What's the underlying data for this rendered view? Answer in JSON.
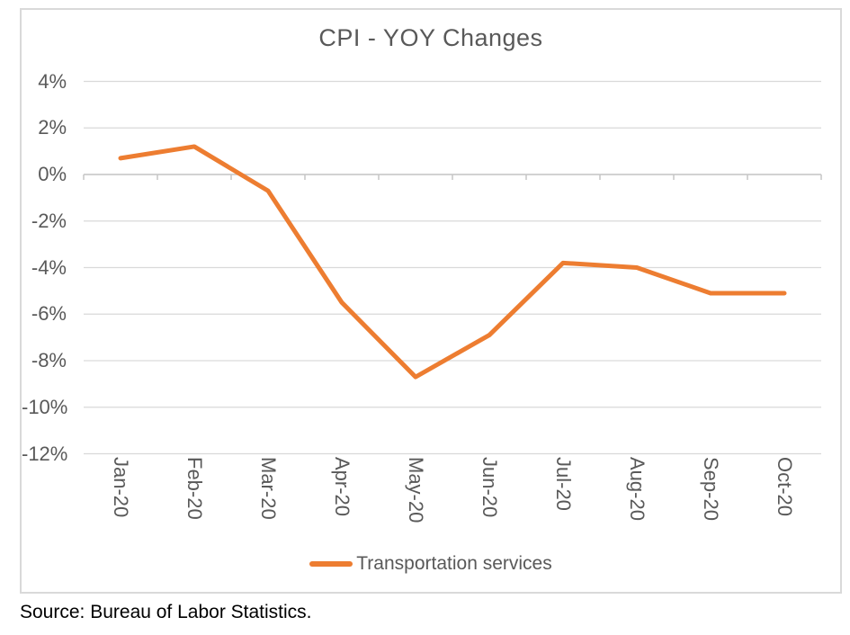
{
  "chart_data": {
    "type": "line",
    "title": "CPI - YOY Changes",
    "categories": [
      "Jan-20",
      "Feb-20",
      "Mar-20",
      "Apr-20",
      "May-20",
      "Jun-20",
      "Jul-20",
      "Aug-20",
      "Sep-20",
      "Oct-20"
    ],
    "series": [
      {
        "name": "Transportation services",
        "values": [
          0.7,
          1.2,
          -0.7,
          -5.5,
          -8.7,
          -6.9,
          -3.8,
          -4.0,
          -5.1,
          -5.1
        ],
        "color": "#ED7D31"
      }
    ],
    "xlabel": "",
    "ylabel": "",
    "y_axis": {
      "min": -12,
      "max": 4,
      "step": 2,
      "tick_labels": [
        "4%",
        "2%",
        "0%",
        "-2%",
        "-4%",
        "-6%",
        "-8%",
        "-10%",
        "-12%"
      ]
    },
    "grid": true,
    "legend_position": "bottom"
  },
  "colors": {
    "line": "#ED7D31",
    "text": "#595959",
    "gridline": "#D9D9D9",
    "axis_line": "#C6C6C6",
    "frame_border": "#D9D9D9",
    "source_text": "#000000"
  },
  "source_note": "Source: Bureau of Labor Statistics."
}
